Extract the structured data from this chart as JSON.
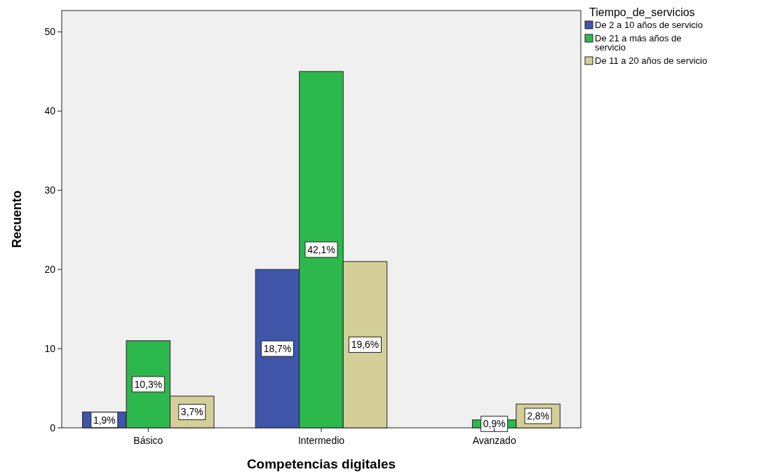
{
  "chart_data": {
    "type": "bar",
    "xlabel": "Competencias digitales",
    "ylabel": "Recuento",
    "legend_title": "Tiempo_de_servicios",
    "categories": [
      "Básico",
      "Intermedio",
      "Avanzado"
    ],
    "series": [
      {
        "name": "De 2 a 10 años de servicio",
        "color": "#3e55a8",
        "values": [
          2,
          20,
          0
        ]
      },
      {
        "name": "De 21 a más años de servicio",
        "color": "#2db84d",
        "values": [
          11,
          45,
          1
        ]
      },
      {
        "name": "De 11 a 20 años de servicio",
        "color": "#d4cf98",
        "values": [
          4,
          21,
          3
        ]
      }
    ],
    "annotations": [
      "1,9%",
      "10,3%",
      "3,7%",
      "18,7%",
      "42,1%",
      "19,6%",
      "0,9%",
      "2,8%"
    ],
    "ylim": [
      0,
      52.7
    ],
    "yticks": [
      0,
      10,
      20,
      30,
      40,
      50
    ],
    "grid": false,
    "legend": "top right"
  }
}
